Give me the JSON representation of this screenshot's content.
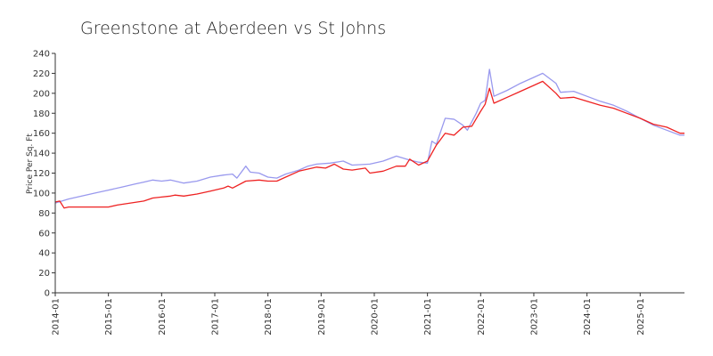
{
  "chart_data": {
    "type": "line",
    "title": "Greenstone at Aberdeen vs St Johns",
    "xlabel": "",
    "ylabel": "Price Per Sq. Ft",
    "ylim": [
      0,
      240
    ],
    "yticks": [
      0,
      20,
      40,
      60,
      80,
      100,
      120,
      140,
      160,
      180,
      200,
      220,
      240
    ],
    "xticks": [
      "2014-01",
      "2015-01",
      "2016-01",
      "2017-01",
      "2018-01",
      "2019-01",
      "2020-01",
      "2021-01",
      "2022-01",
      "2023-01",
      "2024-01",
      "2025-01"
    ],
    "xlim": [
      "2014-01",
      "2025-11"
    ],
    "grid": false,
    "legend": "none",
    "series": [
      {
        "color": "#9999ee",
        "points": [
          [
            "2014-01",
            90
          ],
          [
            "2014-04",
            94
          ],
          [
            "2014-07",
            97
          ],
          [
            "2014-10",
            100
          ],
          [
            "2015-01",
            103
          ],
          [
            "2015-04",
            106
          ],
          [
            "2015-07",
            109
          ],
          [
            "2015-09",
            111
          ],
          [
            "2015-11",
            113
          ],
          [
            "2016-01",
            112
          ],
          [
            "2016-03",
            113
          ],
          [
            "2016-06",
            110
          ],
          [
            "2016-09",
            112
          ],
          [
            "2016-12",
            116
          ],
          [
            "2017-03",
            118
          ],
          [
            "2017-05",
            119
          ],
          [
            "2017-06",
            115
          ],
          [
            "2017-08",
            127
          ],
          [
            "2017-09",
            121
          ],
          [
            "2017-11",
            120
          ],
          [
            "2018-01",
            116
          ],
          [
            "2018-03",
            115
          ],
          [
            "2018-05",
            119
          ],
          [
            "2018-08",
            123
          ],
          [
            "2018-10",
            127
          ],
          [
            "2018-12",
            129
          ],
          [
            "2019-03",
            130
          ],
          [
            "2019-06",
            132
          ],
          [
            "2019-08",
            128
          ],
          [
            "2019-12",
            129
          ],
          [
            "2020-03",
            132
          ],
          [
            "2020-06",
            137
          ],
          [
            "2020-09",
            133
          ],
          [
            "2020-11",
            131
          ],
          [
            "2021-01",
            130
          ],
          [
            "2021-02",
            152
          ],
          [
            "2021-03",
            149
          ],
          [
            "2021-05",
            175
          ],
          [
            "2021-07",
            174
          ],
          [
            "2021-09",
            168
          ],
          [
            "2021-10",
            163
          ],
          [
            "2021-12",
            180
          ],
          [
            "2022-01",
            190
          ],
          [
            "2022-02",
            193
          ],
          [
            "2022-03",
            224
          ],
          [
            "2022-04",
            197
          ],
          [
            "2022-07",
            203
          ],
          [
            "2022-10",
            210
          ],
          [
            "2023-01",
            216
          ],
          [
            "2023-03",
            220
          ],
          [
            "2023-06",
            210
          ],
          [
            "2023-07",
            201
          ],
          [
            "2023-10",
            202
          ],
          [
            "2024-01",
            197
          ],
          [
            "2024-04",
            192
          ],
          [
            "2024-07",
            188
          ],
          [
            "2024-10",
            182
          ],
          [
            "2025-01",
            175
          ],
          [
            "2025-04",
            168
          ],
          [
            "2025-07",
            163
          ],
          [
            "2025-10",
            158
          ],
          [
            "2025-11",
            158
          ]
        ]
      },
      {
        "color": "#ee2222",
        "points": [
          [
            "2014-01",
            91
          ],
          [
            "2014-02",
            92
          ],
          [
            "2014-03",
            85
          ],
          [
            "2014-04",
            86
          ],
          [
            "2014-10",
            86
          ],
          [
            "2015-01",
            86
          ],
          [
            "2015-03",
            88
          ],
          [
            "2015-06",
            90
          ],
          [
            "2015-09",
            92
          ],
          [
            "2015-11",
            95
          ],
          [
            "2016-01",
            96
          ],
          [
            "2016-03",
            97
          ],
          [
            "2016-04",
            98
          ],
          [
            "2016-06",
            97
          ],
          [
            "2016-09",
            99
          ],
          [
            "2016-12",
            102
          ],
          [
            "2017-03",
            105
          ],
          [
            "2017-04",
            107
          ],
          [
            "2017-05",
            105
          ],
          [
            "2017-08",
            112
          ],
          [
            "2017-11",
            113
          ],
          [
            "2018-01",
            112
          ],
          [
            "2018-03",
            112
          ],
          [
            "2018-05",
            116
          ],
          [
            "2018-08",
            122
          ],
          [
            "2018-10",
            124
          ],
          [
            "2018-12",
            126
          ],
          [
            "2019-02",
            125
          ],
          [
            "2019-04",
            129
          ],
          [
            "2019-06",
            124
          ],
          [
            "2019-08",
            123
          ],
          [
            "2019-11",
            125
          ],
          [
            "2019-12",
            120
          ],
          [
            "2020-03",
            122
          ],
          [
            "2020-06",
            127
          ],
          [
            "2020-08",
            127
          ],
          [
            "2020-09",
            134
          ],
          [
            "2020-11",
            128
          ],
          [
            "2021-01",
            132
          ],
          [
            "2021-03",
            148
          ],
          [
            "2021-05",
            160
          ],
          [
            "2021-07",
            158
          ],
          [
            "2021-09",
            166
          ],
          [
            "2021-11",
            167
          ],
          [
            "2022-01",
            182
          ],
          [
            "2022-02",
            189
          ],
          [
            "2022-03",
            205
          ],
          [
            "2022-04",
            190
          ],
          [
            "2022-07",
            196
          ],
          [
            "2022-10",
            202
          ],
          [
            "2023-01",
            208
          ],
          [
            "2023-03",
            212
          ],
          [
            "2023-06",
            200
          ],
          [
            "2023-07",
            195
          ],
          [
            "2023-10",
            196
          ],
          [
            "2024-01",
            192
          ],
          [
            "2024-04",
            188
          ],
          [
            "2024-07",
            185
          ],
          [
            "2024-10",
            180
          ],
          [
            "2025-01",
            175
          ],
          [
            "2025-04",
            169
          ],
          [
            "2025-07",
            166
          ],
          [
            "2025-10",
            160
          ],
          [
            "2025-11",
            160
          ]
        ]
      }
    ]
  }
}
